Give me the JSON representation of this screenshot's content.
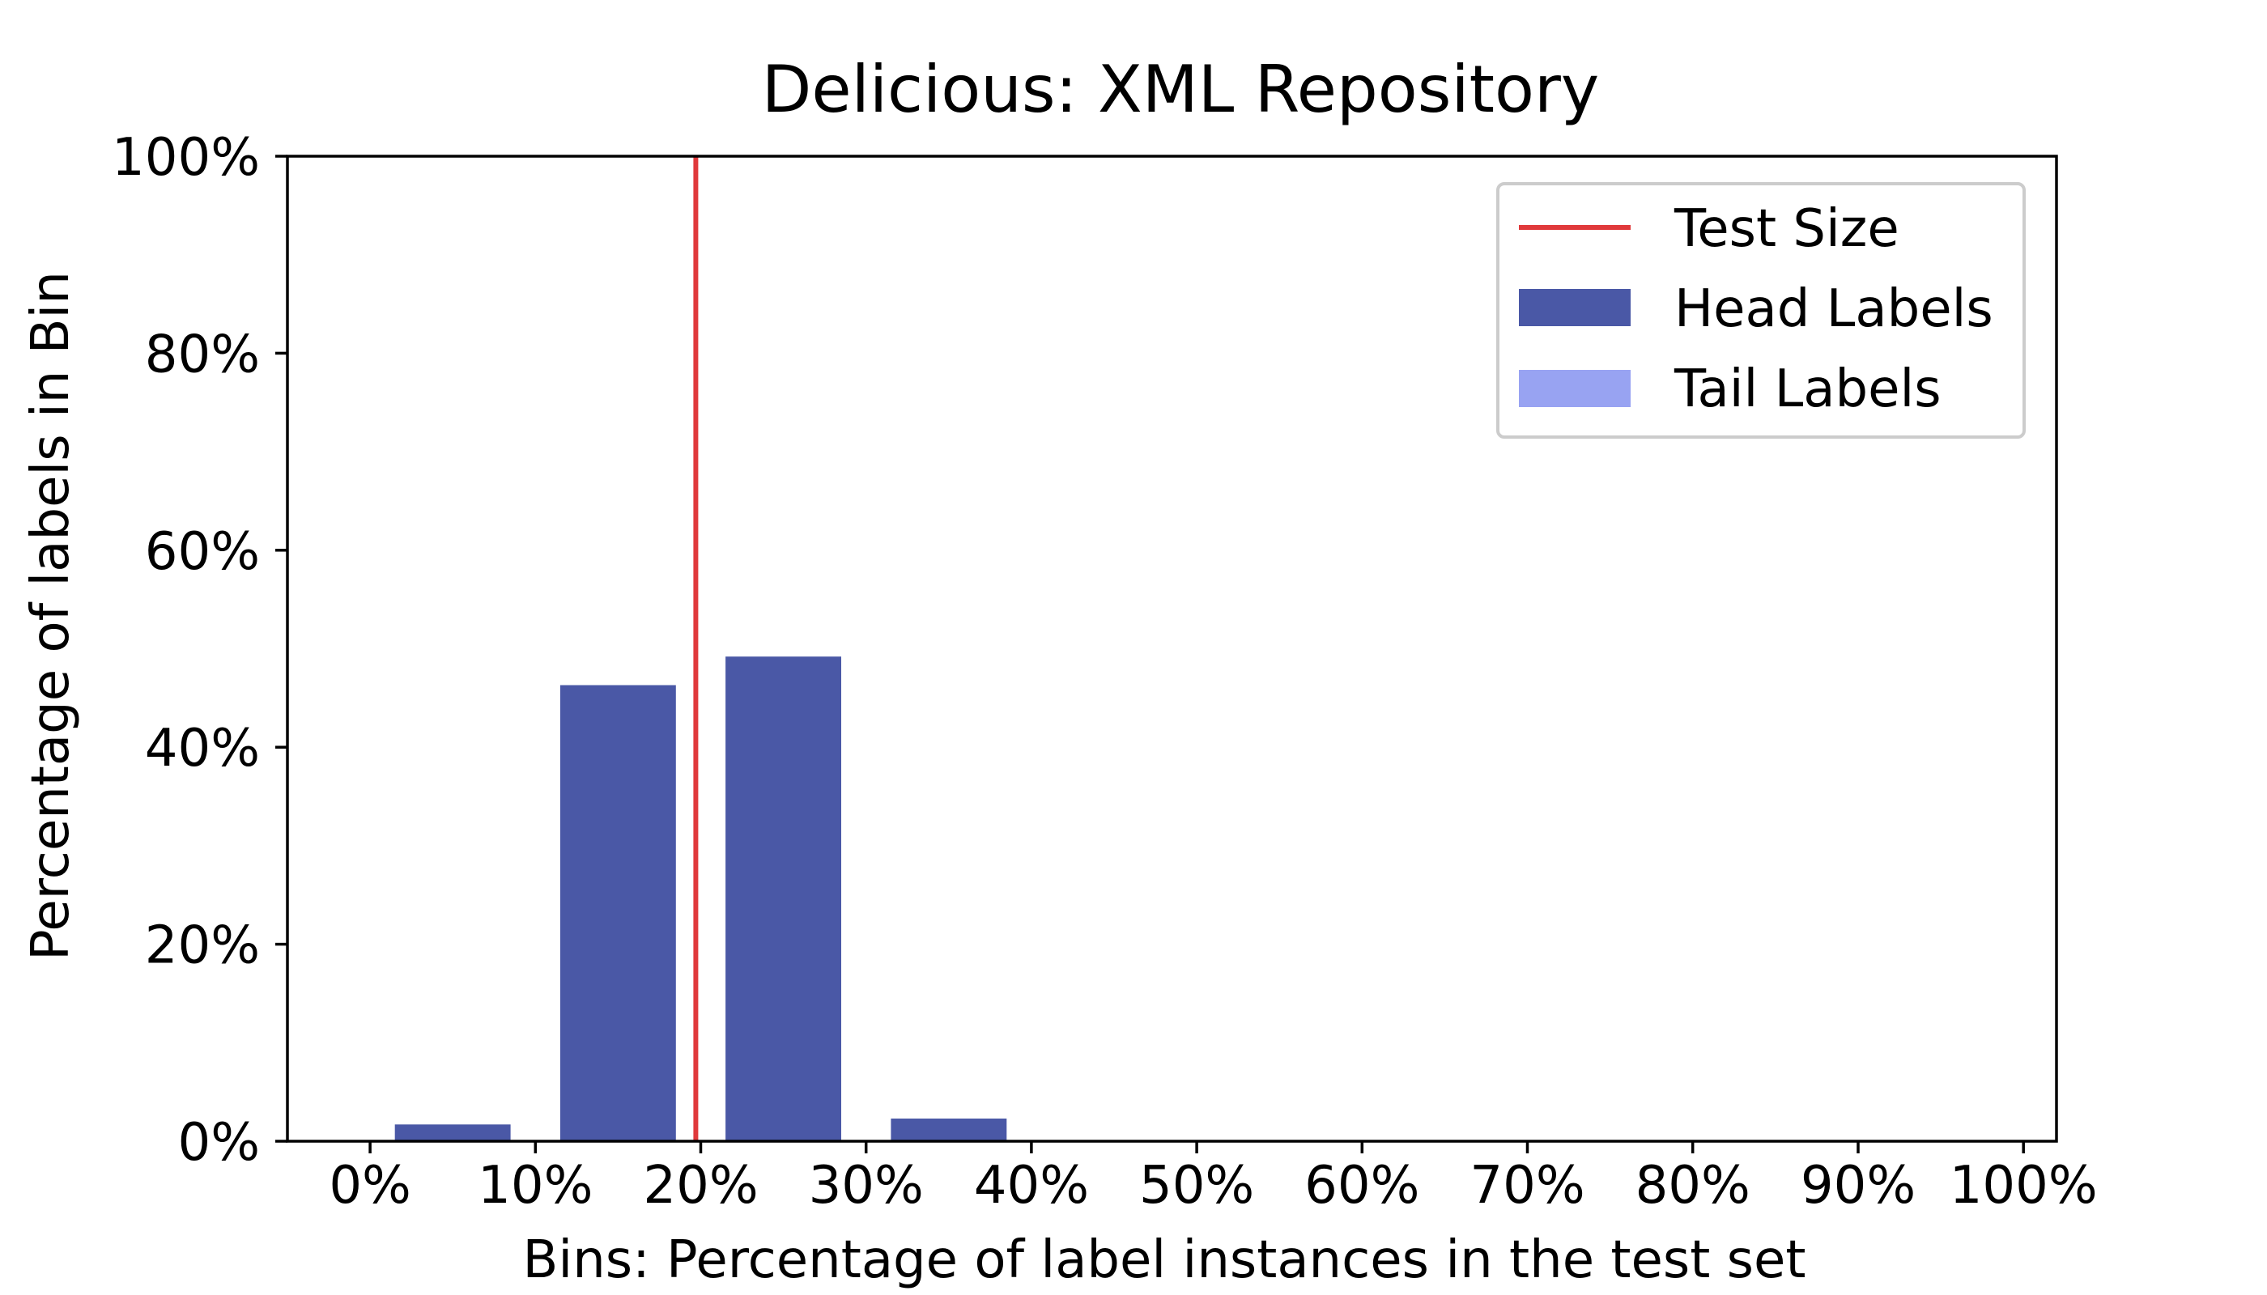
{
  "chart_data": {
    "type": "bar",
    "title": "Delicious: XML Repository",
    "xlabel": "Bins: Percentage of label instances in the test set",
    "ylabel": "Percentage of labels in Bin",
    "xlim": [
      -5,
      102
    ],
    "ylim": [
      0,
      100
    ],
    "x_ticks": [
      0,
      10,
      20,
      30,
      40,
      50,
      60,
      70,
      80,
      90,
      100
    ],
    "x_tick_labels": [
      "0%",
      "10%",
      "20%",
      "30%",
      "40%",
      "50%",
      "60%",
      "70%",
      "80%",
      "90%",
      "100%"
    ],
    "y_ticks": [
      0,
      20,
      40,
      60,
      80,
      100
    ],
    "y_tick_labels": [
      "0%",
      "20%",
      "40%",
      "60%",
      "80%",
      "100%"
    ],
    "bin_width": 7,
    "categories": [
      "0-10%",
      "10-20%",
      "20-30%",
      "30-40%",
      "40-50%",
      "50-60%",
      "60-70%",
      "70-80%",
      "80-90%",
      "90-100%"
    ],
    "bin_centers": [
      5,
      15,
      25,
      35,
      45,
      55,
      65,
      75,
      85,
      95
    ],
    "series": [
      {
        "name": "Head Labels",
        "color": "#4a58a6",
        "values": [
          1.7,
          46.3,
          49.2,
          2.3,
          0,
          0,
          0,
          0,
          0,
          0
        ]
      },
      {
        "name": "Tail Labels",
        "color": "#98a3f2",
        "values": [
          0,
          0,
          0,
          0,
          0,
          0,
          0,
          0,
          0,
          0
        ]
      }
    ],
    "reference_line": {
      "name": "Test Size",
      "x": 19.7,
      "color": "#e0393b"
    },
    "grid": false,
    "legend_position": "top-right"
  }
}
